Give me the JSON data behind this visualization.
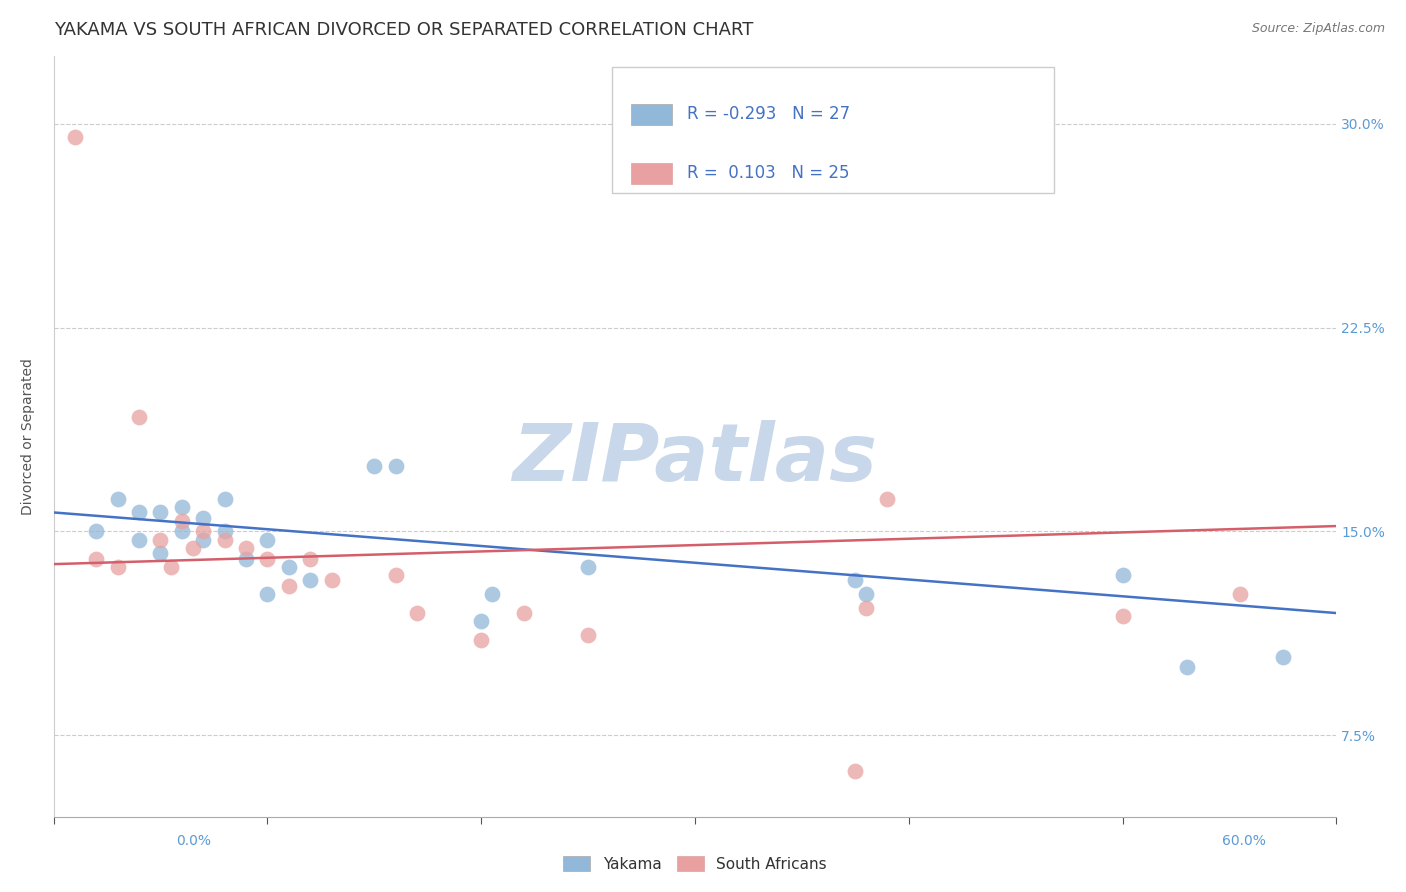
{
  "title": "YAKAMA VS SOUTH AFRICAN DIVORCED OR SEPARATED CORRELATION CHART",
  "source": "Source: ZipAtlas.com",
  "ylabel": "Divorced or Separated",
  "yticks": [
    7.5,
    15.0,
    22.5,
    30.0
  ],
  "xlim": [
    0.0,
    0.6
  ],
  "ylim": [
    0.045,
    0.325
  ],
  "legend_r0": "R = -0.293",
  "legend_n0": "N = 27",
  "legend_r1": "R =  0.103",
  "legend_n1": "N = 25",
  "blue_color": "#92b8d9",
  "pink_color": "#e8a0a0",
  "blue_line_color": "#4472c4",
  "pink_line_color": "#d45f6a",
  "watermark": "ZIPatlas",
  "watermark_color": "#c8d8ea",
  "blue_x": [
    0.02,
    0.03,
    0.04,
    0.04,
    0.05,
    0.05,
    0.06,
    0.06,
    0.07,
    0.07,
    0.08,
    0.08,
    0.09,
    0.1,
    0.1,
    0.11,
    0.12,
    0.15,
    0.16,
    0.2,
    0.205,
    0.25,
    0.375,
    0.38,
    0.5,
    0.53,
    0.575
  ],
  "blue_y": [
    0.15,
    0.162,
    0.157,
    0.147,
    0.157,
    0.142,
    0.159,
    0.15,
    0.155,
    0.147,
    0.162,
    0.15,
    0.14,
    0.147,
    0.127,
    0.137,
    0.132,
    0.174,
    0.174,
    0.117,
    0.127,
    0.137,
    0.132,
    0.127,
    0.134,
    0.1,
    0.104
  ],
  "pink_x": [
    0.01,
    0.02,
    0.03,
    0.04,
    0.05,
    0.055,
    0.06,
    0.065,
    0.07,
    0.08,
    0.09,
    0.1,
    0.11,
    0.12,
    0.13,
    0.16,
    0.17,
    0.2,
    0.22,
    0.25,
    0.375,
    0.38,
    0.39,
    0.5,
    0.555
  ],
  "pink_y": [
    0.295,
    0.14,
    0.137,
    0.192,
    0.147,
    0.137,
    0.154,
    0.144,
    0.15,
    0.147,
    0.144,
    0.14,
    0.13,
    0.14,
    0.132,
    0.134,
    0.12,
    0.11,
    0.12,
    0.112,
    0.062,
    0.122,
    0.162,
    0.119,
    0.127
  ],
  "blue_trend_y_start": 0.157,
  "blue_trend_y_end": 0.12,
  "pink_trend_y_start": 0.138,
  "pink_trend_y_end": 0.152,
  "title_fontsize": 13,
  "axis_label_fontsize": 10,
  "tick_fontsize": 10,
  "legend_fontsize": 12,
  "source_fontsize": 9
}
